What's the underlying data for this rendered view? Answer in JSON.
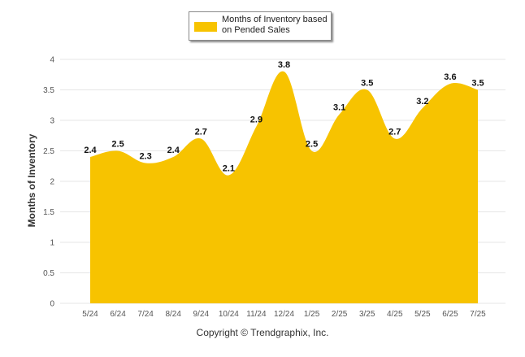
{
  "chart_data": {
    "type": "area",
    "categories": [
      "5/24",
      "6/24",
      "7/24",
      "8/24",
      "9/24",
      "10/24",
      "11/24",
      "12/24",
      "1/25",
      "2/25",
      "3/25",
      "4/25",
      "5/25",
      "6/25",
      "7/25"
    ],
    "series": [
      {
        "name": "Months of Inventory based on Pended Sales",
        "values": [
          2.4,
          2.5,
          2.3,
          2.4,
          2.7,
          2.1,
          2.9,
          3.8,
          2.5,
          3.1,
          3.5,
          2.7,
          3.2,
          3.6,
          3.5
        ],
        "color": "#f7c300"
      }
    ],
    "data_labels": [
      "2.4",
      "2.5",
      "2.3",
      "2.4",
      "2.7",
      "2.1",
      "2.9",
      "3.8",
      "2.5",
      "3.1",
      "3.5",
      "2.7",
      "3.2",
      "3.6",
      "3.5"
    ],
    "ylabel": "Months of Inventory",
    "xlabel": "",
    "ylim": [
      0,
      4
    ],
    "yticks": [
      "0",
      "0.5",
      "1",
      "1.5",
      "2",
      "2.5",
      "3",
      "3.5",
      "4"
    ],
    "grid": true,
    "legend_position": "top-center",
    "curve": "smooth"
  },
  "legend": {
    "label": "Months of Inventory based on Pended Sales",
    "color": "#f7c300"
  },
  "footer": {
    "copyright": "Copyright © Trendgraphix, Inc."
  },
  "colors": {
    "grid": "#e6e6e6",
    "axis_text": "#555555",
    "label_text": "#111111"
  }
}
